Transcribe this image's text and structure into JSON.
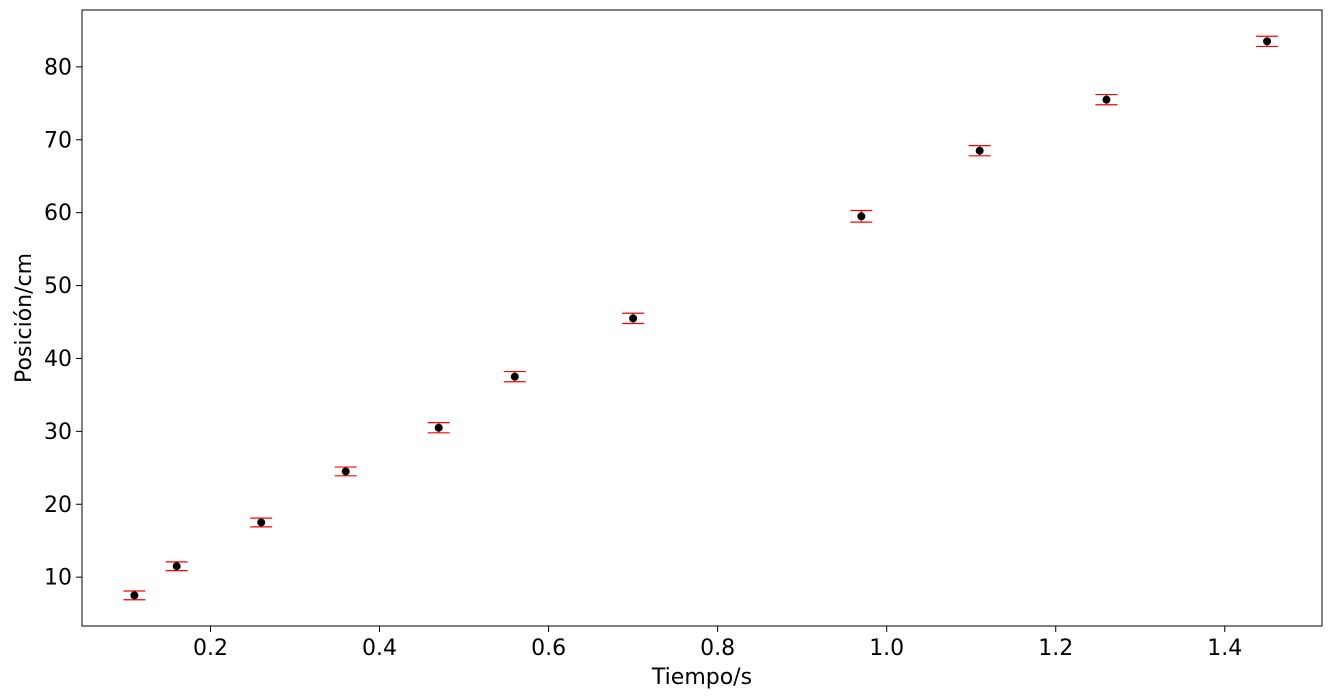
{
  "chart_data": {
    "type": "scatter",
    "title": "",
    "xlabel": "Tiempo/s",
    "ylabel": "Posición/cm",
    "xlim": [
      0.048,
      1.515
    ],
    "ylim": [
      3.3,
      87.8
    ],
    "xticks": [
      0.2,
      0.4,
      0.6,
      0.8,
      1.0,
      1.2,
      1.4
    ],
    "xtick_labels": [
      "0.2",
      "0.4",
      "0.6",
      "0.8",
      "1.0",
      "1.2",
      "1.4"
    ],
    "yticks": [
      10,
      20,
      30,
      40,
      50,
      60,
      70,
      80
    ],
    "ytick_labels": [
      "10",
      "20",
      "30",
      "40",
      "50",
      "60",
      "70",
      "80"
    ],
    "grid": false,
    "series": [
      {
        "x": [
          0.11,
          0.16,
          0.26,
          0.36,
          0.47,
          0.56,
          0.7,
          0.97,
          1.11,
          1.26,
          1.45
        ],
        "y": [
          7.5,
          11.5,
          17.5,
          24.5,
          30.5,
          37.5,
          45.5,
          59.5,
          68.5,
          75.5,
          83.5
        ],
        "y_error": [
          0.6,
          0.6,
          0.6,
          0.6,
          0.7,
          0.7,
          0.7,
          0.8,
          0.7,
          0.7,
          0.7
        ],
        "marker_color": "#000000",
        "errorbar_color": "#ff0000"
      }
    ]
  }
}
